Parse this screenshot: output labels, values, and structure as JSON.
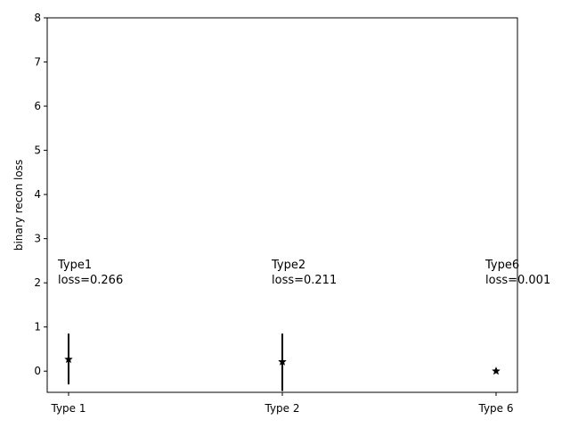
{
  "chart_data": {
    "type": "scatter",
    "title": "",
    "xlabel": "",
    "ylabel": "binary recon loss",
    "categories": [
      "Type 1",
      "Type 2",
      "Type 6"
    ],
    "values": [
      0.266,
      0.211,
      0.001
    ],
    "error_low": [
      -0.3,
      -0.45,
      0.001
    ],
    "error_high": [
      0.85,
      0.85,
      0.001
    ],
    "marker": "star",
    "color": "#000000",
    "ylim": [
      -0.48,
      8.0
    ],
    "yticks": [
      0,
      1,
      2,
      3,
      4,
      5,
      6,
      7,
      8
    ],
    "grid": false,
    "annotations": [
      {
        "line1": "Type1",
        "line2": "loss=0.266"
      },
      {
        "line1": "Type2",
        "line2": "loss=0.211"
      },
      {
        "line1": "Type6",
        "line2": "loss=0.001"
      }
    ]
  }
}
